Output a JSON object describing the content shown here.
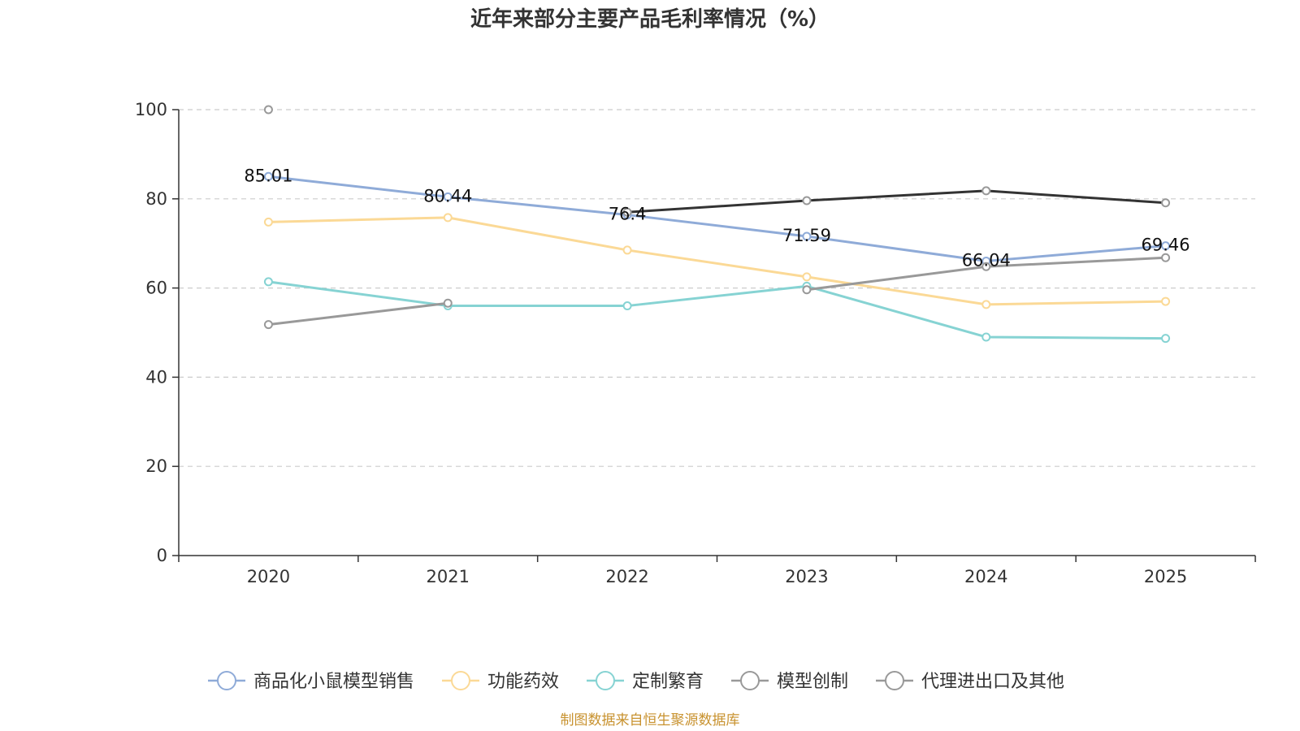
{
  "chart_data": {
    "type": "line",
    "title": "近年来部分主要产品毛利率情况（%）",
    "categories": [
      "2020",
      "2021",
      "2022",
      "2023",
      "2024",
      "2025"
    ],
    "yticks": [
      "0",
      "20",
      "40",
      "60",
      "80",
      "100"
    ],
    "ylim": [
      0,
      100
    ],
    "grid": true,
    "legend_position": "bottom",
    "series": [
      {
        "name": "商品化小鼠模型销售",
        "color": "#8fabd8",
        "values": [
          85.01,
          80.44,
          76.4,
          71.59,
          66.04,
          69.46
        ],
        "labels": [
          "85.01",
          "80.44",
          "76.4",
          "71.59",
          "66.04",
          "69.46"
        ]
      },
      {
        "name": "功能药效",
        "color": "#fbd996",
        "values": [
          74.8,
          75.8,
          68.5,
          62.5,
          56.3,
          57.0
        ],
        "labels": []
      },
      {
        "name": "定制繁育",
        "color": "#86d3d3",
        "values": [
          61.4,
          56.0,
          56.0,
          60.4,
          49.0,
          48.7
        ],
        "labels": []
      },
      {
        "name": "模型创制",
        "color": "#999999",
        "values": [
          100,
          null,
          77.0,
          79.6,
          81.8,
          79.1
        ],
        "labels": []
      },
      {
        "name": "代理进出口及其他",
        "color": "#999999",
        "values": [
          51.8,
          56.6,
          null,
          59.6,
          64.8,
          66.8
        ],
        "labels": []
      }
    ],
    "source": "制图数据来自恒生聚源数据库",
    "source_color": "#c8922f"
  }
}
